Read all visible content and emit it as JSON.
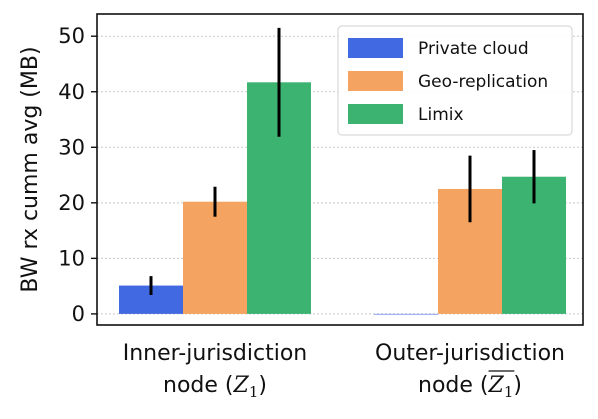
{
  "chart_data": {
    "type": "bar",
    "categories": [
      "Inner-jurisdiction node (Z1)",
      "Outer-jurisdiction node (Z1 with overline)"
    ],
    "category_label_lines": [
      [
        "Inner-jurisdiction",
        "node ("
      ],
      [
        "Outer-jurisdiction",
        "node ("
      ]
    ],
    "series": [
      {
        "name": "Private cloud",
        "color": "#4169e1",
        "values": [
          5.1,
          0.0
        ],
        "errors": [
          1.7,
          0.0
        ]
      },
      {
        "name": "Geo-replication",
        "color": "#f4a460",
        "values": [
          20.2,
          22.5
        ],
        "errors": [
          2.7,
          6.0
        ]
      },
      {
        "name": "Limix",
        "color": "#3cb371",
        "values": [
          41.7,
          24.7
        ],
        "errors": [
          9.8,
          4.8
        ]
      }
    ],
    "title": "",
    "xlabel": "",
    "ylabel": "BW rx cumm avg (MB)",
    "ylim": [
      -2,
      54
    ],
    "yticks": [
      0,
      10,
      20,
      30,
      40,
      50
    ],
    "grid": "horizontal-dotted",
    "legend_position": "top-right"
  }
}
